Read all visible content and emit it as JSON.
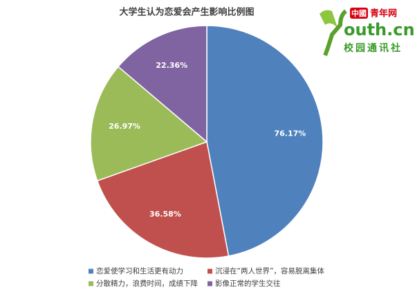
{
  "chart_data": {
    "type": "pie",
    "title": "大学生认为恋爱会产生影响比例图",
    "categories": [
      "恋爱使学习和生活更有动力",
      "沉浸在“两人世界”，容易脱离集体",
      "分散精力，浪费时间，成绩下降",
      "影像正常的学生交往"
    ],
    "values": [
      76.17,
      36.58,
      26.97,
      22.36
    ],
    "value_labels": [
      "76.17%",
      "36.58%",
      "26.97%",
      "22.36%"
    ],
    "colors": [
      "#4f81bd",
      "#c0504d",
      "#9bbb59",
      "#8064a2"
    ],
    "legend": "bottom"
  },
  "logo": {
    "brand": "中國",
    "name": "青年网",
    "domain": "outh.cn",
    "sub": "校园通讯社"
  }
}
